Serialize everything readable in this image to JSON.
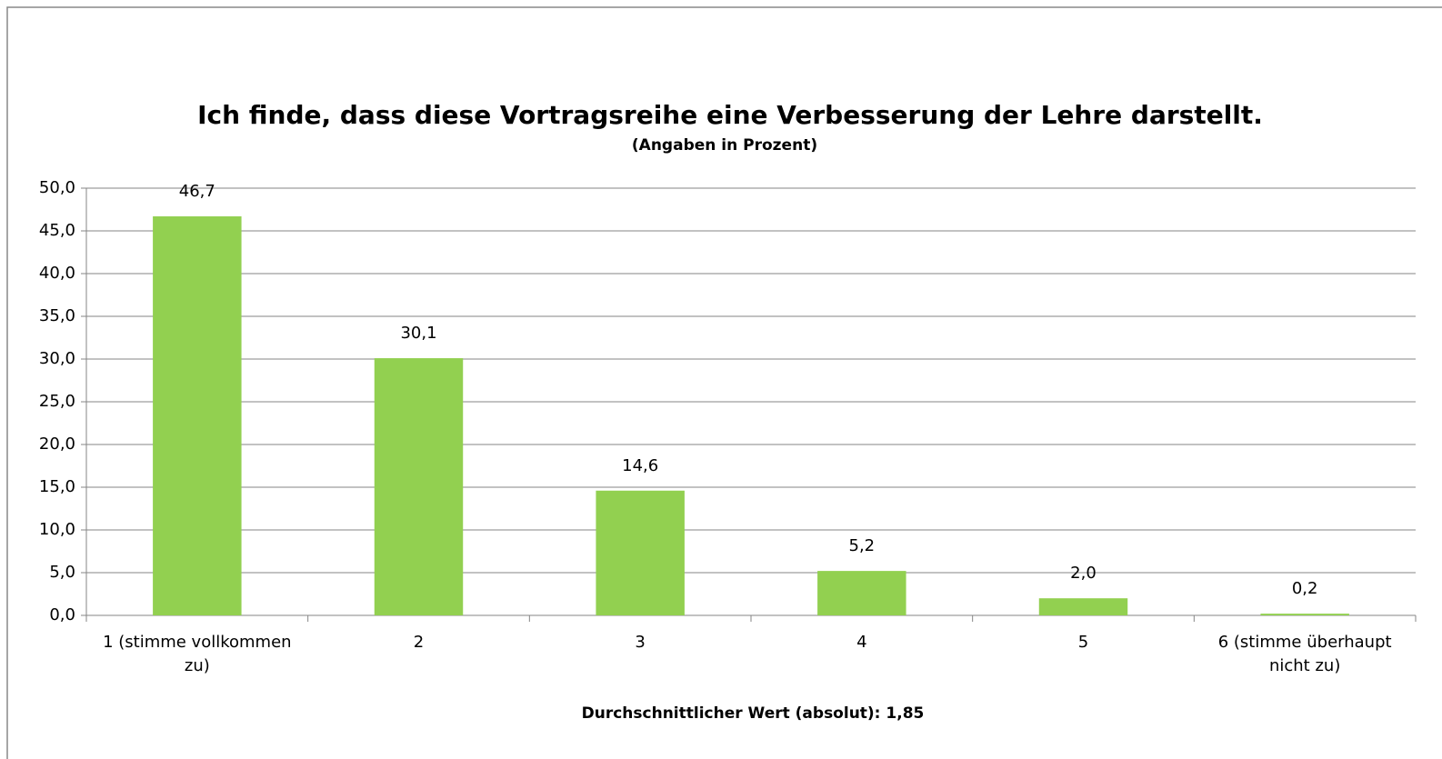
{
  "chart_data": {
    "type": "bar",
    "title": "Ich finde, dass diese Vortragsreihe eine Verbesserung der Lehre darstellt.",
    "subtitle": "(Angaben in Prozent)",
    "x_label": "Durchschnittlicher Wert (absolut): 1,85",
    "categories": [
      "1 (stimme vollkommen zu)",
      "2",
      "3",
      "4",
      "5",
      "6 (stimme überhaupt nicht zu)"
    ],
    "values": [
      46.7,
      30.1,
      14.6,
      5.2,
      2.0,
      0.2
    ],
    "value_labels": [
      "46,7",
      "30,1",
      "14,6",
      "5,2",
      "2,0",
      "0,2"
    ],
    "color": "#92d050",
    "ylim": [
      0,
      50
    ],
    "yticks": [
      {
        "value": 0,
        "label": "0,0"
      },
      {
        "value": 5,
        "label": "5,0"
      },
      {
        "value": 10,
        "label": "10,0"
      },
      {
        "value": 15,
        "label": "15,0"
      },
      {
        "value": 20,
        "label": "20,0"
      },
      {
        "value": 25,
        "label": "25,0"
      },
      {
        "value": 30,
        "label": "30,0"
      },
      {
        "value": 35,
        "label": "35,0"
      },
      {
        "value": 40,
        "label": "40,0"
      },
      {
        "value": 45,
        "label": "45,0"
      },
      {
        "value": 50,
        "label": "50,0"
      }
    ],
    "grid": true
  }
}
